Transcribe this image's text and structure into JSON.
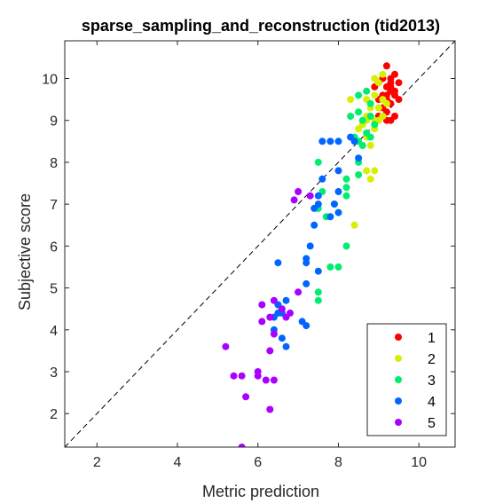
{
  "chart_data": {
    "type": "scatter",
    "title": "sparse_sampling_and_reconstruction (tid2013)",
    "xlabel": "Metric prediction",
    "ylabel": "Subjective score",
    "xlim": [
      1.2,
      10.9
    ],
    "ylim": [
      1.2,
      10.9
    ],
    "xticks": [
      2,
      4,
      6,
      8,
      10
    ],
    "yticks": [
      2,
      3,
      4,
      5,
      6,
      7,
      8,
      9,
      10
    ],
    "grid": false,
    "legend_position": "bottom-right",
    "reference_line": "dashed diagonal y = x",
    "series": [
      {
        "name": "1",
        "color": "#ff0000",
        "points": [
          [
            9.2,
            10.3
          ],
          [
            9.4,
            10.1
          ],
          [
            9.3,
            10.0
          ],
          [
            9.1,
            10.0
          ],
          [
            9.0,
            9.9
          ],
          [
            9.3,
            9.9
          ],
          [
            9.5,
            9.9
          ],
          [
            8.9,
            9.8
          ],
          [
            9.2,
            9.8
          ],
          [
            9.4,
            9.7
          ],
          [
            9.3,
            9.7
          ],
          [
            9.1,
            9.6
          ],
          [
            9.4,
            9.6
          ],
          [
            9.2,
            9.5
          ],
          [
            9.5,
            9.5
          ],
          [
            9.0,
            9.5
          ],
          [
            9.3,
            9.4
          ],
          [
            9.1,
            9.3
          ],
          [
            9.2,
            9.2
          ],
          [
            9.4,
            9.1
          ],
          [
            9.2,
            9.0
          ],
          [
            9.0,
            9.1
          ],
          [
            9.3,
            9.0
          ],
          [
            9.3,
            9.8
          ],
          [
            9.2,
            9.6
          ]
        ]
      },
      {
        "name": "2",
        "color": "#d7f000",
        "points": [
          [
            9.1,
            10.1
          ],
          [
            8.9,
            10.0
          ],
          [
            9.0,
            9.9
          ],
          [
            8.9,
            9.6
          ],
          [
            8.7,
            9.5
          ],
          [
            9.1,
            9.5
          ],
          [
            8.3,
            9.5
          ],
          [
            9.2,
            9.4
          ],
          [
            8.8,
            9.3
          ],
          [
            9.0,
            9.3
          ],
          [
            8.7,
            9.1
          ],
          [
            8.8,
            9.1
          ],
          [
            9.1,
            9.1
          ],
          [
            8.9,
            9.0
          ],
          [
            9.0,
            9.0
          ],
          [
            8.7,
            9.0
          ],
          [
            8.6,
            8.9
          ],
          [
            8.5,
            8.8
          ],
          [
            8.9,
            8.8
          ],
          [
            8.7,
            8.6
          ],
          [
            8.8,
            8.4
          ],
          [
            8.7,
            7.8
          ],
          [
            8.9,
            7.8
          ],
          [
            8.8,
            7.6
          ],
          [
            8.4,
            6.5
          ]
        ]
      },
      {
        "name": "3",
        "color": "#00ee70",
        "points": [
          [
            8.5,
            9.6
          ],
          [
            8.7,
            9.7
          ],
          [
            8.8,
            9.4
          ],
          [
            8.3,
            9.1
          ],
          [
            8.5,
            9.2
          ],
          [
            8.8,
            9.1
          ],
          [
            8.6,
            9.0
          ],
          [
            8.9,
            8.9
          ],
          [
            8.7,
            8.7
          ],
          [
            8.4,
            8.6
          ],
          [
            8.5,
            8.5
          ],
          [
            8.8,
            8.6
          ],
          [
            8.6,
            8.4
          ],
          [
            8.5,
            8.0
          ],
          [
            7.5,
            8.0
          ],
          [
            8.2,
            7.6
          ],
          [
            8.5,
            7.7
          ],
          [
            8.2,
            7.4
          ],
          [
            8.2,
            7.2
          ],
          [
            7.6,
            7.3
          ],
          [
            7.9,
            7.0
          ],
          [
            7.5,
            6.9
          ],
          [
            7.7,
            6.7
          ],
          [
            8.2,
            6.0
          ],
          [
            8.0,
            5.5
          ],
          [
            7.8,
            5.5
          ],
          [
            7.5,
            4.9
          ],
          [
            7.5,
            4.7
          ]
        ]
      },
      {
        "name": "4",
        "color": "#0066ff",
        "points": [
          [
            7.8,
            8.5
          ],
          [
            7.6,
            8.5
          ],
          [
            8.3,
            8.6
          ],
          [
            8.4,
            8.5
          ],
          [
            8.0,
            8.5
          ],
          [
            8.5,
            8.1
          ],
          [
            8.0,
            7.8
          ],
          [
            7.6,
            7.6
          ],
          [
            7.5,
            7.2
          ],
          [
            8.0,
            7.3
          ],
          [
            7.9,
            7.0
          ],
          [
            7.5,
            7.0
          ],
          [
            7.4,
            6.9
          ],
          [
            8.0,
            6.8
          ],
          [
            7.8,
            6.7
          ],
          [
            7.4,
            6.5
          ],
          [
            7.3,
            6.0
          ],
          [
            7.2,
            5.7
          ],
          [
            7.2,
            5.6
          ],
          [
            6.5,
            5.6
          ],
          [
            7.5,
            5.4
          ],
          [
            7.2,
            5.1
          ],
          [
            6.7,
            4.7
          ],
          [
            6.5,
            4.6
          ],
          [
            6.6,
            4.4
          ],
          [
            6.5,
            4.4
          ],
          [
            6.4,
            4.3
          ],
          [
            7.1,
            4.2
          ],
          [
            7.2,
            4.1
          ],
          [
            6.4,
            4.0
          ],
          [
            6.6,
            3.8
          ],
          [
            6.7,
            3.6
          ]
        ]
      },
      {
        "name": "5",
        "color": "#aa00ff",
        "points": [
          [
            7.3,
            7.2
          ],
          [
            7.0,
            7.3
          ],
          [
            6.9,
            7.1
          ],
          [
            7.0,
            4.9
          ],
          [
            6.4,
            4.7
          ],
          [
            6.1,
            4.6
          ],
          [
            6.6,
            4.5
          ],
          [
            6.8,
            4.4
          ],
          [
            6.7,
            4.3
          ],
          [
            6.3,
            4.3
          ],
          [
            6.1,
            4.2
          ],
          [
            6.4,
            3.9
          ],
          [
            6.3,
            3.5
          ],
          [
            5.2,
            3.6
          ],
          [
            6.0,
            3.0
          ],
          [
            6.0,
            2.9
          ],
          [
            5.6,
            2.9
          ],
          [
            5.4,
            2.9
          ],
          [
            6.4,
            2.8
          ],
          [
            6.2,
            2.8
          ],
          [
            5.7,
            2.4
          ],
          [
            6.3,
            2.1
          ],
          [
            5.6,
            1.2
          ]
        ]
      }
    ]
  }
}
